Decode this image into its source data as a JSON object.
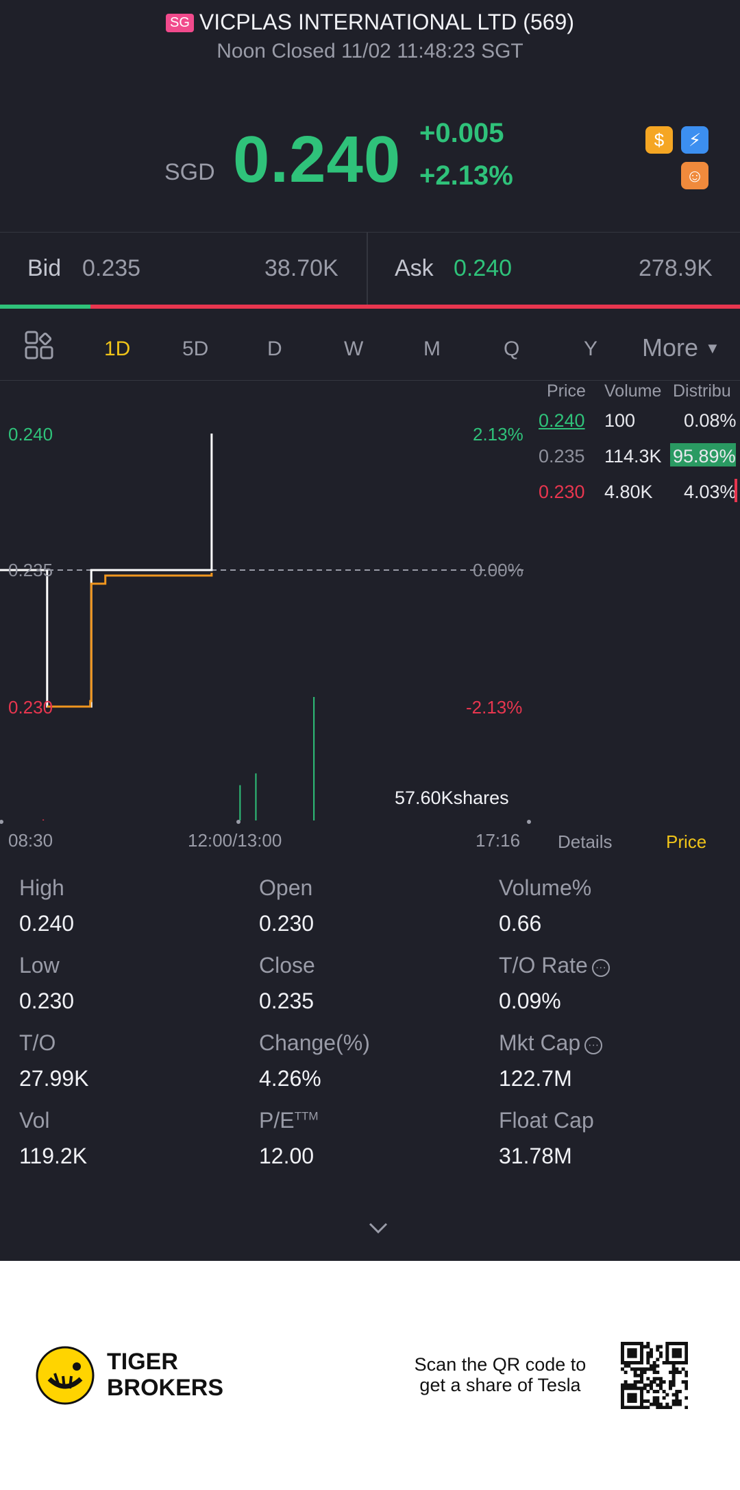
{
  "header": {
    "market_badge": "SG",
    "title": "VICPLAS INTERNATIONAL LTD (569)",
    "status": "Noon Closed 11/02 11:48:23 SGT"
  },
  "quote": {
    "currency": "SGD",
    "price": "0.240",
    "change": "+0.005",
    "change_pct": "+2.13%",
    "icons": [
      "dollar-icon",
      "lightning-icon",
      "robot-icon"
    ]
  },
  "book": {
    "bid_label": "Bid",
    "bid_price": "0.235",
    "bid_size": "38.70K",
    "ask_label": "Ask",
    "ask_price": "0.240",
    "ask_size": "278.9K",
    "bid_ratio": 0.122
  },
  "tabs": {
    "items": [
      "1D",
      "5D",
      "D",
      "W",
      "M",
      "Q",
      "Y"
    ],
    "active": "1D",
    "more_label": "More"
  },
  "chart": {
    "y_top": "0.240",
    "y_mid": "0.235",
    "y_bot": "0.230",
    "pct_top": "2.13%",
    "pct_mid": "0.00%",
    "pct_bot": "-2.13%",
    "volume_label": "57.60Kshares",
    "x_start": "08:30",
    "x_mid": "12:00/13:00",
    "x_end": "17:16"
  },
  "chart_data": {
    "type": "line",
    "x_range": [
      "08:30",
      "17:16"
    ],
    "ylim": [
      0.23,
      0.24
    ],
    "series": [
      {
        "name": "",
        "x": [
          "08:30",
          "09:16",
          "09:17",
          "10:00",
          "10:01",
          "12:00",
          "12:01"
        ],
        "values": [
          0.235,
          0.235,
          0.23,
          0.23,
          0.235,
          0.235,
          0.24
        ]
      },
      {
        "name": "",
        "x": [
          "09:17",
          "10:00",
          "10:01",
          "10:15",
          "12:01"
        ],
        "values": [
          0.23,
          0.2302,
          0.2345,
          0.2348,
          0.2349
        ]
      }
    ]
  },
  "distribution": {
    "headers": [
      "Price",
      "Volume",
      "Distribu"
    ],
    "rows": [
      {
        "price": "0.240",
        "volume": "100",
        "pct": "0.08%",
        "share": 0.0008
      },
      {
        "price": "0.235",
        "volume": "114.3K",
        "pct": "95.89%",
        "share": 0.9589
      },
      {
        "price": "0.230",
        "volume": "4.80K",
        "pct": "4.03%",
        "share": 0.0403
      }
    ],
    "details_tab": "Details",
    "price_tab": "Price"
  },
  "stats": [
    [
      {
        "label": "High",
        "value": "0.240"
      },
      {
        "label": "Open",
        "value": "0.230"
      },
      {
        "label": "Volume%",
        "value": "0.66"
      }
    ],
    [
      {
        "label": "Low",
        "value": "0.230"
      },
      {
        "label": "Close",
        "value": "0.235"
      },
      {
        "label": "T/O Rate",
        "value": "0.09%"
      }
    ],
    [
      {
        "label": "T/O",
        "value": "27.99K"
      },
      {
        "label": "Change(%)",
        "value": "4.26%"
      },
      {
        "label": "Mkt Cap",
        "value": "122.7M"
      }
    ],
    [
      {
        "label": "Vol",
        "value": "119.2K"
      },
      {
        "label": "P/E",
        "value": "12.00"
      },
      {
        "label": "Float Cap",
        "value": "31.78M"
      }
    ]
  ],
  "pe_suffix": "TTM",
  "footer": {
    "brand_line1": "TIGER",
    "brand_line2": "BROKERS",
    "promo_line1": "Scan the QR code to",
    "promo_line2": "get a share of Tesla"
  }
}
